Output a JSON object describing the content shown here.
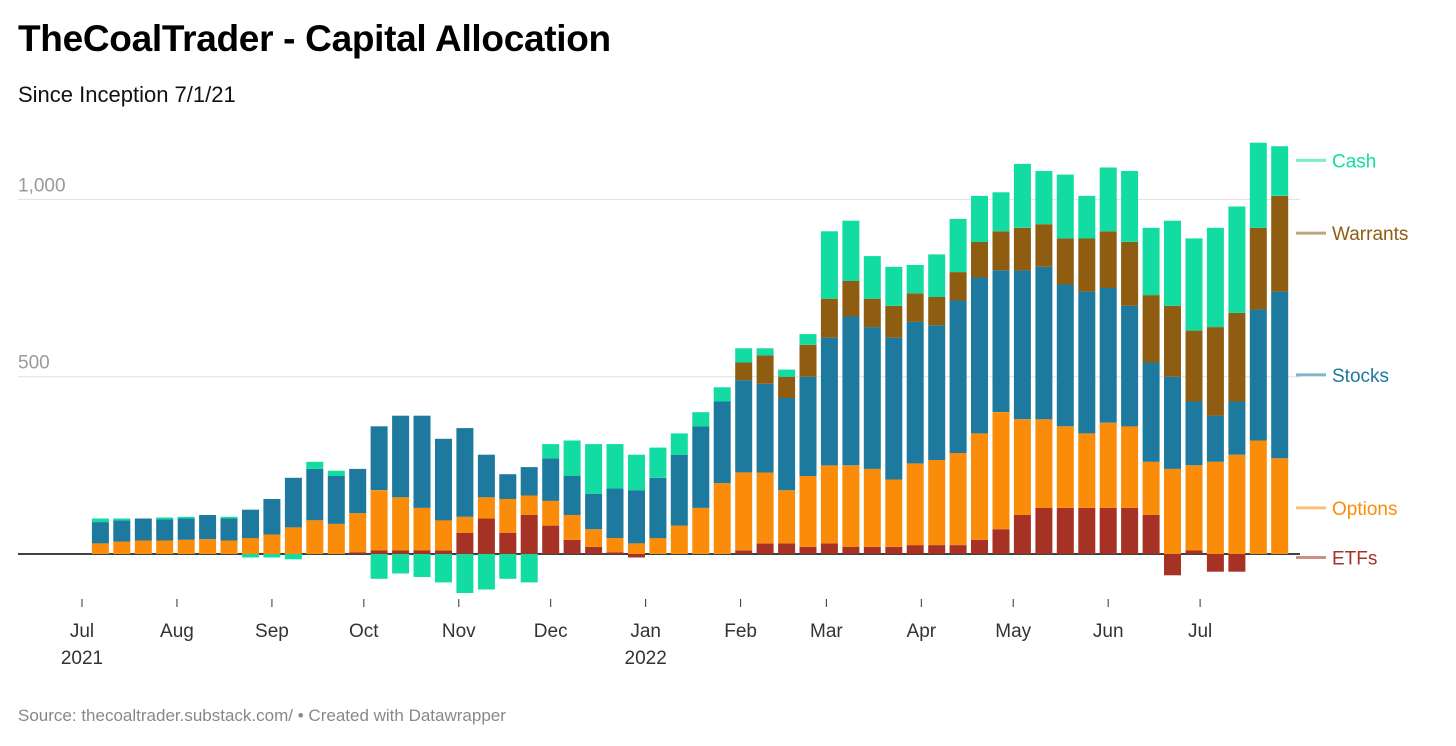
{
  "title": "TheCoalTrader - Capital Allocation",
  "subtitle": "Since Inception 7/1/21",
  "footer": {
    "source_label": "Source:",
    "source": "thecoaltrader.substack.com/",
    "separator": "•",
    "credit": "Created with Datawrapper"
  },
  "colors": {
    "Cash": "#12dca2",
    "Warrants": "#8e5d12",
    "Stocks": "#1d7a9e",
    "Options": "#fb8c0a",
    "ETFs": "#a63226"
  },
  "chart_data": {
    "type": "bar",
    "stacked": true,
    "grid": true,
    "ylim": [
      -120,
      1200
    ],
    "yticks": [
      {
        "value": 500,
        "label": "500"
      },
      {
        "value": 1000,
        "label": "1,000"
      }
    ],
    "xrange": [
      "2021-07-01",
      "2022-07-31"
    ],
    "xticks": [
      {
        "date": "2021-07-01",
        "label": "Jul",
        "year": "2021"
      },
      {
        "date": "2021-08-01",
        "label": "Aug",
        "year": ""
      },
      {
        "date": "2021-09-01",
        "label": "Sep",
        "year": ""
      },
      {
        "date": "2021-10-01",
        "label": "Oct",
        "year": ""
      },
      {
        "date": "2021-11-01",
        "label": "Nov",
        "year": ""
      },
      {
        "date": "2021-12-01",
        "label": "Dec",
        "year": ""
      },
      {
        "date": "2022-01-01",
        "label": "Jan",
        "year": "2022"
      },
      {
        "date": "2022-02-01",
        "label": "Feb",
        "year": ""
      },
      {
        "date": "2022-03-01",
        "label": "Mar",
        "year": ""
      },
      {
        "date": "2022-04-01",
        "label": "Apr",
        "year": ""
      },
      {
        "date": "2022-05-01",
        "label": "May",
        "year": ""
      },
      {
        "date": "2022-06-01",
        "label": "Jun",
        "year": ""
      },
      {
        "date": "2022-07-01",
        "label": "Jul",
        "year": ""
      }
    ],
    "series_labels": [
      {
        "name": "Cash",
        "value": 1110
      },
      {
        "name": "Warrants",
        "value": 905
      },
      {
        "name": "Stocks",
        "value": 505
      },
      {
        "name": "Options",
        "value": 130
      },
      {
        "name": "ETFs",
        "value": -10
      }
    ],
    "series_order": [
      "ETFs",
      "Options",
      "Stocks",
      "Warrants",
      "Cash"
    ],
    "weeks": [
      {
        "date": "2021-07-07",
        "values": {
          "ETFs": 0,
          "Options": 30,
          "Stocks": 60,
          "Warrants": 0,
          "Cash": 10
        }
      },
      {
        "date": "2021-07-14",
        "values": {
          "ETFs": 0,
          "Options": 35,
          "Stocks": 60,
          "Warrants": 0,
          "Cash": 5
        }
      },
      {
        "date": "2021-07-21",
        "values": {
          "ETFs": 0,
          "Options": 38,
          "Stocks": 62,
          "Warrants": 0,
          "Cash": 0
        }
      },
      {
        "date": "2021-07-28",
        "values": {
          "ETFs": 0,
          "Options": 38,
          "Stocks": 60,
          "Warrants": 0,
          "Cash": 5
        }
      },
      {
        "date": "2021-08-04",
        "values": {
          "ETFs": 0,
          "Options": 40,
          "Stocks": 60,
          "Warrants": 0,
          "Cash": 5
        }
      },
      {
        "date": "2021-08-11",
        "values": {
          "ETFs": 0,
          "Options": 42,
          "Stocks": 68,
          "Warrants": 0,
          "Cash": 0
        }
      },
      {
        "date": "2021-08-18",
        "values": {
          "ETFs": 0,
          "Options": 38,
          "Stocks": 62,
          "Warrants": 0,
          "Cash": 5
        }
      },
      {
        "date": "2021-08-25",
        "values": {
          "ETFs": 0,
          "Options": 45,
          "Stocks": 80,
          "Warrants": 0,
          "Cash": -10
        }
      },
      {
        "date": "2021-09-01",
        "values": {
          "ETFs": 0,
          "Options": 55,
          "Stocks": 100,
          "Warrants": 0,
          "Cash": -10
        }
      },
      {
        "date": "2021-09-08",
        "values": {
          "ETFs": 0,
          "Options": 75,
          "Stocks": 140,
          "Warrants": 0,
          "Cash": -15
        }
      },
      {
        "date": "2021-09-15",
        "values": {
          "ETFs": 0,
          "Options": 95,
          "Stocks": 145,
          "Warrants": 0,
          "Cash": 20
        }
      },
      {
        "date": "2021-09-22",
        "values": {
          "ETFs": 0,
          "Options": 85,
          "Stocks": 135,
          "Warrants": 0,
          "Cash": 15
        }
      },
      {
        "date": "2021-09-29",
        "values": {
          "ETFs": 5,
          "Options": 110,
          "Stocks": 125,
          "Warrants": 0,
          "Cash": 0
        }
      },
      {
        "date": "2021-10-06",
        "values": {
          "ETFs": 10,
          "Options": 170,
          "Stocks": 180,
          "Warrants": 0,
          "Cash": -70
        }
      },
      {
        "date": "2021-10-13",
        "values": {
          "ETFs": 10,
          "Options": 150,
          "Stocks": 230,
          "Warrants": 0,
          "Cash": -55
        }
      },
      {
        "date": "2021-10-20",
        "values": {
          "ETFs": 10,
          "Options": 120,
          "Stocks": 260,
          "Warrants": 0,
          "Cash": -65
        }
      },
      {
        "date": "2021-10-27",
        "values": {
          "ETFs": 10,
          "Options": 85,
          "Stocks": 230,
          "Warrants": 0,
          "Cash": -80
        }
      },
      {
        "date": "2021-11-03",
        "values": {
          "ETFs": 60,
          "Options": 45,
          "Stocks": 250,
          "Warrants": 0,
          "Cash": -110
        }
      },
      {
        "date": "2021-11-10",
        "values": {
          "ETFs": 100,
          "Options": 60,
          "Stocks": 120,
          "Warrants": 0,
          "Cash": -100
        }
      },
      {
        "date": "2021-11-17",
        "values": {
          "ETFs": 60,
          "Options": 95,
          "Stocks": 70,
          "Warrants": 0,
          "Cash": -70
        }
      },
      {
        "date": "2021-11-24",
        "values": {
          "ETFs": 110,
          "Options": 55,
          "Stocks": 80,
          "Warrants": 0,
          "Cash": -80
        }
      },
      {
        "date": "2021-12-01",
        "values": {
          "ETFs": 80,
          "Options": 70,
          "Stocks": 120,
          "Warrants": 0,
          "Cash": 40
        }
      },
      {
        "date": "2021-12-08",
        "values": {
          "ETFs": 40,
          "Options": 70,
          "Stocks": 110,
          "Warrants": 0,
          "Cash": 100
        }
      },
      {
        "date": "2021-12-15",
        "values": {
          "ETFs": 20,
          "Options": 50,
          "Stocks": 100,
          "Warrants": 0,
          "Cash": 140
        }
      },
      {
        "date": "2021-12-22",
        "values": {
          "ETFs": 5,
          "Options": 40,
          "Stocks": 140,
          "Warrants": 0,
          "Cash": 125
        }
      },
      {
        "date": "2021-12-29",
        "values": {
          "ETFs": -10,
          "Options": 30,
          "Stocks": 150,
          "Warrants": 0,
          "Cash": 100
        }
      },
      {
        "date": "2022-01-05",
        "values": {
          "ETFs": 0,
          "Options": 45,
          "Stocks": 170,
          "Warrants": 0,
          "Cash": 85
        }
      },
      {
        "date": "2022-01-12",
        "values": {
          "ETFs": 0,
          "Options": 80,
          "Stocks": 200,
          "Warrants": 0,
          "Cash": 60
        }
      },
      {
        "date": "2022-01-19",
        "values": {
          "ETFs": 0,
          "Options": 130,
          "Stocks": 230,
          "Warrants": 0,
          "Cash": 40
        }
      },
      {
        "date": "2022-01-26",
        "values": {
          "ETFs": 0,
          "Options": 200,
          "Stocks": 230,
          "Warrants": 0,
          "Cash": 40
        }
      },
      {
        "date": "2022-02-02",
        "values": {
          "ETFs": 10,
          "Options": 220,
          "Stocks": 260,
          "Warrants": 50,
          "Cash": 40
        }
      },
      {
        "date": "2022-02-09",
        "values": {
          "ETFs": 30,
          "Options": 200,
          "Stocks": 250,
          "Warrants": 80,
          "Cash": 20
        }
      },
      {
        "date": "2022-02-16",
        "values": {
          "ETFs": 30,
          "Options": 150,
          "Stocks": 260,
          "Warrants": 60,
          "Cash": 20
        }
      },
      {
        "date": "2022-02-23",
        "values": {
          "ETFs": 20,
          "Options": 200,
          "Stocks": 280,
          "Warrants": 90,
          "Cash": 30
        }
      },
      {
        "date": "2022-03-02",
        "values": {
          "ETFs": 30,
          "Options": 220,
          "Stocks": 360,
          "Warrants": 110,
          "Cash": 190
        }
      },
      {
        "date": "2022-03-09",
        "values": {
          "ETFs": 20,
          "Options": 230,
          "Stocks": 420,
          "Warrants": 100,
          "Cash": 170
        }
      },
      {
        "date": "2022-03-16",
        "values": {
          "ETFs": 20,
          "Options": 220,
          "Stocks": 400,
          "Warrants": 80,
          "Cash": 120
        }
      },
      {
        "date": "2022-03-23",
        "values": {
          "ETFs": 20,
          "Options": 190,
          "Stocks": 400,
          "Warrants": 90,
          "Cash": 110
        }
      },
      {
        "date": "2022-03-30",
        "values": {
          "ETFs": 25,
          "Options": 230,
          "Stocks": 400,
          "Warrants": 80,
          "Cash": 80
        }
      },
      {
        "date": "2022-04-06",
        "values": {
          "ETFs": 25,
          "Options": 240,
          "Stocks": 380,
          "Warrants": 80,
          "Cash": 120
        }
      },
      {
        "date": "2022-04-13",
        "values": {
          "ETFs": 25,
          "Options": 260,
          "Stocks": 430,
          "Warrants": 80,
          "Cash": 150
        }
      },
      {
        "date": "2022-04-20",
        "values": {
          "ETFs": 40,
          "Options": 300,
          "Stocks": 440,
          "Warrants": 100,
          "Cash": 130
        }
      },
      {
        "date": "2022-04-27",
        "values": {
          "ETFs": 70,
          "Options": 330,
          "Stocks": 400,
          "Warrants": 110,
          "Cash": 110
        }
      },
      {
        "date": "2022-05-04",
        "values": {
          "ETFs": 110,
          "Options": 270,
          "Stocks": 420,
          "Warrants": 120,
          "Cash": 180
        }
      },
      {
        "date": "2022-05-11",
        "values": {
          "ETFs": 130,
          "Options": 250,
          "Stocks": 430,
          "Warrants": 120,
          "Cash": 150
        }
      },
      {
        "date": "2022-05-18",
        "values": {
          "ETFs": 130,
          "Options": 230,
          "Stocks": 400,
          "Warrants": 130,
          "Cash": 180
        }
      },
      {
        "date": "2022-05-25",
        "values": {
          "ETFs": 130,
          "Options": 210,
          "Stocks": 400,
          "Warrants": 150,
          "Cash": 120
        }
      },
      {
        "date": "2022-06-01",
        "values": {
          "ETFs": 130,
          "Options": 240,
          "Stocks": 380,
          "Warrants": 160,
          "Cash": 180
        }
      },
      {
        "date": "2022-06-08",
        "values": {
          "ETFs": 130,
          "Options": 230,
          "Stocks": 340,
          "Warrants": 180,
          "Cash": 200
        }
      },
      {
        "date": "2022-06-15",
        "values": {
          "ETFs": 110,
          "Options": 150,
          "Stocks": 280,
          "Warrants": 190,
          "Cash": 190
        }
      },
      {
        "date": "2022-06-22",
        "values": {
          "ETFs": -60,
          "Options": 240,
          "Stocks": 260,
          "Warrants": 200,
          "Cash": 240
        }
      },
      {
        "date": "2022-06-29",
        "values": {
          "ETFs": 10,
          "Options": 240,
          "Stocks": 180,
          "Warrants": 200,
          "Cash": 260
        }
      },
      {
        "date": "2022-07-06",
        "values": {
          "ETFs": -50,
          "Options": 260,
          "Stocks": 130,
          "Warrants": 250,
          "Cash": 280
        }
      },
      {
        "date": "2022-07-13",
        "values": {
          "ETFs": -50,
          "Options": 280,
          "Stocks": 150,
          "Warrants": 250,
          "Cash": 300
        }
      },
      {
        "date": "2022-07-20",
        "values": {
          "ETFs": 0,
          "Options": 320,
          "Stocks": 370,
          "Warrants": 230,
          "Cash": 240
        }
      },
      {
        "date": "2022-07-27",
        "values": {
          "ETFs": 0,
          "Options": 270,
          "Stocks": 470,
          "Warrants": 270,
          "Cash": 140
        }
      }
    ]
  }
}
